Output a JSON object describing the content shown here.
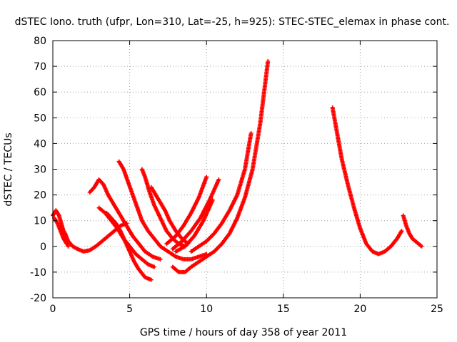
{
  "chart_data": {
    "type": "scatter",
    "title": "dSTEC Iono. truth (ufpr, Lon=310, Lat=-25, h=925): STEC-STEC_elemax in phase cont.",
    "xlabel": "GPS time / hours of day 358 of year 2011",
    "ylabel": "dSTEC  / TECUs",
    "xlim": [
      0,
      25
    ],
    "ylim": [
      -20,
      80
    ],
    "xticks": [
      0,
      5,
      10,
      15,
      20,
      25
    ],
    "yticks": [
      -20,
      -10,
      0,
      10,
      20,
      30,
      40,
      50,
      60,
      70,
      80
    ],
    "grid": true,
    "legend": "none",
    "marker": "+",
    "color": "#ff0000",
    "series": [
      {
        "x": [
          0.0,
          0.2,
          0.4,
          0.6,
          0.8,
          1.0
        ],
        "y": [
          12,
          14,
          12,
          8,
          3,
          0
        ]
      },
      {
        "x": [
          0.1,
          0.3,
          0.5,
          0.7,
          0.9
        ],
        "y": [
          11,
          9,
          6,
          3,
          1
        ]
      },
      {
        "x": [
          0.5,
          0.8,
          1.0,
          1.3,
          1.6,
          2.0,
          2.4,
          2.8,
          3.2,
          3.6,
          4.0,
          4.4,
          4.8
        ],
        "y": [
          8,
          5,
          2,
          0,
          -1,
          -2,
          -1.5,
          0,
          2,
          4,
          6,
          8,
          9
        ]
      },
      {
        "x": [
          2.4,
          2.7,
          3.0,
          3.3,
          3.6,
          4.0,
          4.4,
          4.8,
          5.2,
          5.6,
          6.0,
          6.5,
          7.0
        ],
        "y": [
          21,
          23,
          26,
          24,
          20,
          16,
          12,
          8,
          4,
          1,
          -2,
          -4,
          -5
        ]
      },
      {
        "x": [
          3.0,
          3.4,
          3.8,
          4.2,
          4.6,
          5.0,
          5.4,
          5.8,
          6.2,
          6.6
        ],
        "y": [
          15,
          13,
          10,
          7,
          3,
          0,
          -3,
          -5,
          -7,
          -8
        ]
      },
      {
        "x": [
          3.5,
          3.8,
          4.1,
          4.4,
          4.7,
          5.0,
          5.3,
          5.6,
          6.0,
          6.4
        ],
        "y": [
          13,
          11,
          9,
          6,
          2,
          -2,
          -6,
          -9,
          -12,
          -13
        ]
      },
      {
        "x": [
          4.3,
          4.6,
          4.9,
          5.2,
          5.5,
          5.8,
          6.2,
          6.6,
          7.0,
          7.5,
          8.0,
          8.5,
          9.0,
          9.5,
          10.0
        ],
        "y": [
          33,
          30,
          25,
          20,
          15,
          10,
          6,
          3,
          0,
          -2,
          -4,
          -5,
          -5,
          -4,
          -3
        ]
      },
      {
        "x": [
          5.8,
          6.0,
          6.3,
          6.6,
          7.0,
          7.4,
          7.8,
          8.2,
          8.6
        ],
        "y": [
          30,
          27,
          21,
          16,
          11,
          6,
          3,
          1,
          0
        ]
      },
      {
        "x": [
          6.4,
          6.7,
          7.0,
          7.3,
          7.6,
          8.0,
          8.4,
          8.8
        ],
        "y": [
          23,
          20,
          17,
          14,
          10,
          6,
          3,
          1
        ]
      },
      {
        "x": [
          7.4,
          8.0,
          8.5,
          9.0,
          9.5,
          10.0
        ],
        "y": [
          1,
          4,
          8,
          13,
          19,
          27
        ]
      },
      {
        "x": [
          7.8,
          8.4,
          9.0,
          9.6,
          10.2,
          10.8
        ],
        "y": [
          -1,
          2,
          6,
          11,
          18,
          26
        ]
      },
      {
        "x": [
          8.0,
          8.6,
          9.2,
          9.8,
          10.4
        ],
        "y": [
          -2,
          0,
          4,
          10,
          18
        ]
      },
      {
        "x": [
          7.8,
          8.2,
          8.6,
          9.0,
          9.5,
          10.0,
          10.5,
          11.0,
          11.5,
          12.0,
          12.5,
          13.0,
          13.5,
          14.0
        ],
        "y": [
          -8,
          -10,
          -10,
          -8,
          -6,
          -4,
          -2,
          1,
          5,
          11,
          19,
          30,
          48,
          72
        ]
      },
      {
        "x": [
          9.0,
          9.5,
          10.0,
          10.5,
          11.0,
          11.5,
          12.0,
          12.5,
          12.9
        ],
        "y": [
          -2,
          0,
          2,
          5,
          9,
          14,
          20,
          30,
          44
        ]
      },
      {
        "x": [
          18.2,
          18.5,
          18.8,
          19.2,
          19.6,
          20.0,
          20.4,
          20.8,
          21.2,
          21.6,
          22.0,
          22.4,
          22.7
        ],
        "y": [
          54,
          44,
          34,
          24,
          15,
          7,
          1,
          -2,
          -3,
          -2,
          0,
          3,
          6
        ]
      },
      {
        "x": [
          22.8,
          23.0,
          23.2,
          23.4,
          23.6,
          23.8,
          24.0
        ],
        "y": [
          12,
          8,
          5,
          3,
          2,
          1,
          0
        ]
      }
    ]
  }
}
